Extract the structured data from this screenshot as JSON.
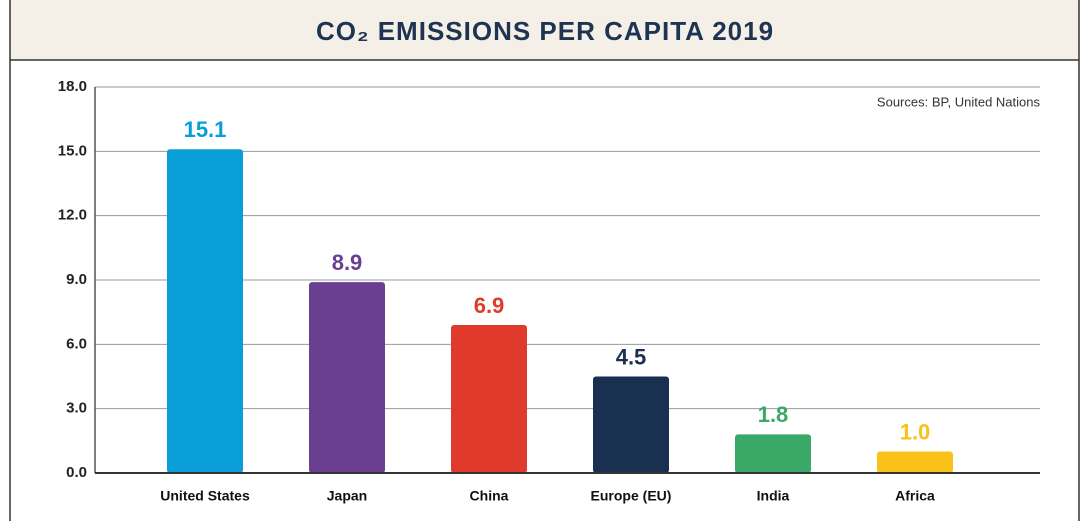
{
  "chart_data": {
    "type": "bar",
    "title": "CO₂ EMISSIONS PER CAPITA 2019",
    "annotation": "Sources: BP, United Nations",
    "categories": [
      "United States",
      "Japan",
      "China",
      "Europe (EU)",
      "India",
      "Africa"
    ],
    "values": [
      15.1,
      8.9,
      6.9,
      4.5,
      1.8,
      1.0
    ],
    "value_labels": [
      "15.1",
      "8.9",
      "6.9",
      "4.5",
      "1.8",
      "1.0"
    ],
    "colors": [
      "#0a9ed9",
      "#6a3f92",
      "#e03a2c",
      "#1a3050",
      "#3aa866",
      "#f8c21a"
    ],
    "ylim": [
      0,
      18
    ],
    "yticks": [
      {
        "value": 0,
        "label": "0.0"
      },
      {
        "value": 3,
        "label": "3.0"
      },
      {
        "value": 6,
        "label": "6.0"
      },
      {
        "value": 9,
        "label": "9.0"
      },
      {
        "value": 12,
        "label": "12.0"
      },
      {
        "value": 15,
        "label": "15.0"
      },
      {
        "value": 18,
        "label": "18.0"
      }
    ],
    "grid": true
  }
}
